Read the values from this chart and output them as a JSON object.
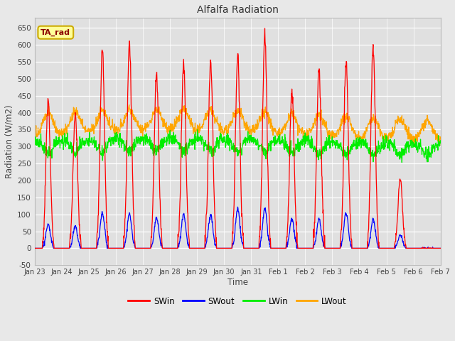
{
  "title": "Alfalfa Radiation",
  "xlabel": "Time",
  "ylabel": "Radiation (W/m2)",
  "ylim": [
    -50,
    680
  ],
  "colors": {
    "SWin": "#ff0000",
    "SWout": "#0000ff",
    "LWin": "#00ee00",
    "LWout": "#ffa500"
  },
  "legend_label": "TA_rad",
  "legend_box_facecolor": "#ffff99",
  "legend_box_edgecolor": "#ccaa00",
  "fig_facecolor": "#e8e8e8",
  "axes_facecolor": "#e0e0e0",
  "n_days": 15,
  "SWin_peaks": [
    435,
    400,
    590,
    605,
    510,
    545,
    550,
    575,
    625,
    465,
    530,
    555,
    590,
    205,
    0
  ],
  "SWout_peaks": [
    70,
    65,
    105,
    100,
    90,
    100,
    100,
    115,
    115,
    85,
    85,
    105,
    85,
    40,
    0
  ],
  "LWin_base": 315,
  "LWout_base": 335,
  "LWin_amplitude": 35,
  "LWout_amplitude": 60,
  "seed": 12
}
